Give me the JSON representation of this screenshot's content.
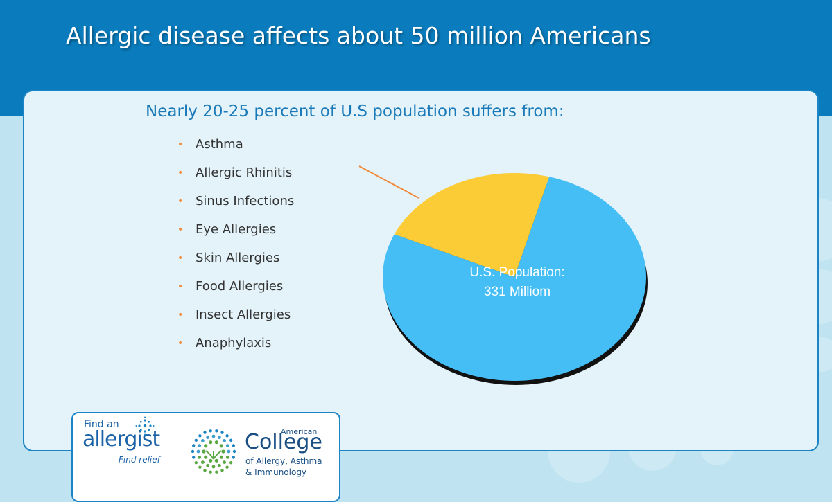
{
  "header": {
    "title": "Allergic disease affects about 50 million Americans"
  },
  "panel": {
    "subtitle": "Nearly 20-25 percent of U.S population suffers from:",
    "conditions": [
      "Asthma",
      "Allergic Rhinitis",
      "Sinus Infections",
      "Eye Allergies",
      "Skin Allergies",
      "Food Allergies",
      "Insect Allergies",
      "Anaphylaxis"
    ]
  },
  "chart_data": {
    "type": "pie",
    "title": "",
    "slices": [
      {
        "label": "U.S. Population: 331 Milliom",
        "value": 77.5,
        "color": "#45bdf5"
      },
      {
        "label": "",
        "value": 22.5,
        "color": "#fccc36"
      }
    ],
    "inner_label_lines": [
      "U.S. Population:",
      "331 Milliom"
    ],
    "legend": "none",
    "grid": false
  },
  "logos": {
    "find_allergist": {
      "line1": "Find an",
      "line2": "allergist",
      "line3": "Find relief"
    },
    "acaai": {
      "line1": "American",
      "line2": "College",
      "line3": "of Allergy, Asthma",
      "line4": "& Immunology"
    }
  },
  "colors": {
    "header": "#0a7cbd",
    "panel_bg": "#e3f3f9",
    "panel_border": "#1a84c4",
    "bullet": "#f08a3c",
    "callout": "#f08a3c",
    "pie_main": "#45bdf5",
    "pie_highlight": "#fccc36"
  }
}
